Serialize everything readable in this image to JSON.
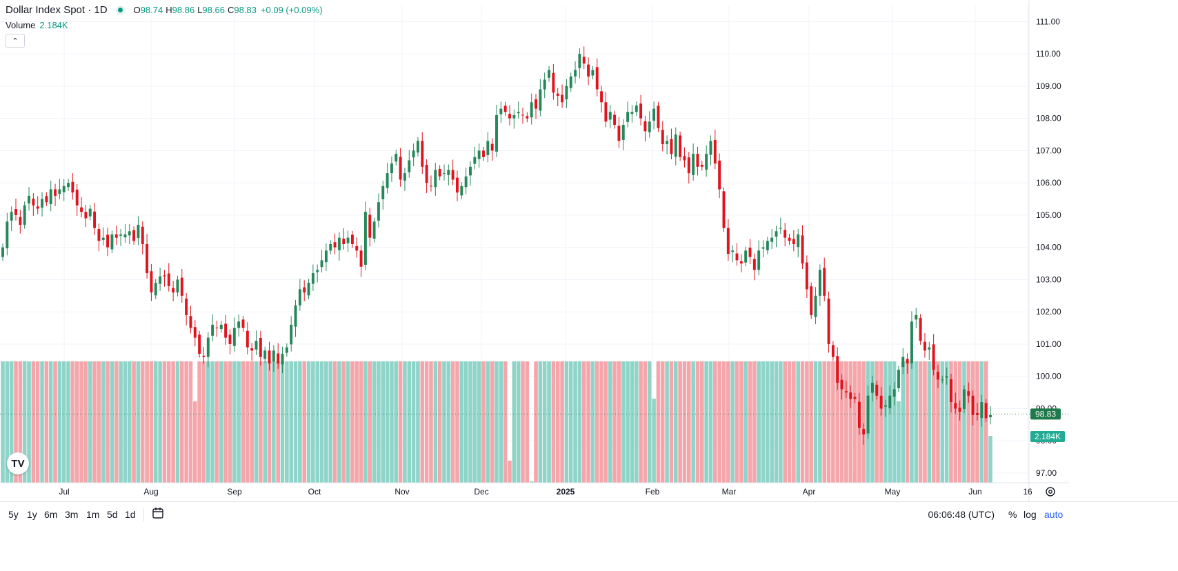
{
  "header": {
    "symbol": "Dollar Index Spot · 1D",
    "open_label": "O",
    "open": "98.74",
    "high_label": "H",
    "high": "98.86",
    "low_label": "L",
    "low": "98.66",
    "close_label": "C",
    "close": "98.83",
    "change": "+0.09 (+0.09%)"
  },
  "volume_legend": {
    "label": "Volume",
    "value": "2.184K"
  },
  "collapse_icon": "chevron-up-icon",
  "logo_icon": "tradingview-logo",
  "toolbar": {
    "ranges": [
      "5y",
      "1y",
      "6m",
      "3m",
      "1m",
      "5d",
      "1d"
    ],
    "time": "06:06:48 (UTC)",
    "percent": "%",
    "log": "log",
    "auto": "auto"
  },
  "colors": {
    "up": "#26875a",
    "down": "#e0141e",
    "vol_up": "#8fd4c8",
    "vol_down": "#f4a6ab",
    "grid": "#f0f3fa",
    "accent": "#2962ff"
  },
  "chart_data": {
    "type": "candlestick",
    "title": "Dollar Index Spot · 1D",
    "y_ticks": [
      "111.00",
      "110.00",
      "109.00",
      "108.00",
      "107.00",
      "106.00",
      "105.00",
      "104.00",
      "103.00",
      "102.00",
      "101.00",
      "100.00",
      "99.00",
      "98.00",
      "97.00"
    ],
    "ylim": [
      96.7,
      111.5
    ],
    "x_ticks": [
      "Jul",
      "Aug",
      "Sep",
      "Oct",
      "Nov",
      "Dec",
      "2025",
      "Feb",
      "Mar",
      "Apr",
      "May",
      "Jun",
      "16"
    ],
    "last_price": "98.83",
    "last_volume": "2.184K",
    "grid": true,
    "series": [
      {
        "name": "Price",
        "close": [
          104.0,
          104.8,
          105.1,
          105.0,
          104.7,
          105.3,
          105.6,
          105.3,
          105.2,
          105.5,
          105.4,
          105.8,
          105.6,
          105.8,
          105.9,
          106.0,
          105.7,
          105.3,
          105.1,
          104.9,
          105.2,
          104.6,
          104.2,
          104.3,
          104.0,
          104.4,
          104.3,
          104.4,
          104.4,
          104.5,
          104.2,
          104.7,
          104.1,
          103.2,
          102.6,
          102.9,
          103.1,
          103.1,
          102.8,
          102.6,
          103.0,
          102.5,
          101.9,
          101.5,
          101.2,
          100.7,
          100.6,
          101.2,
          101.6,
          101.5,
          101.6,
          101.2,
          101.0,
          101.5,
          101.7,
          101.5,
          100.9,
          100.8,
          101.1,
          100.6,
          100.8,
          100.4,
          100.8,
          100.4,
          100.7,
          100.9,
          101.6,
          102.2,
          102.7,
          102.6,
          102.9,
          103.2,
          103.3,
          103.6,
          103.9,
          104.1,
          104.0,
          104.3,
          104.1,
          104.3,
          104.1,
          103.9,
          103.4,
          105.1,
          104.3,
          104.8,
          105.4,
          105.9,
          106.3,
          106.6,
          106.9,
          106.1,
          106.3,
          106.7,
          107.0,
          107.3,
          106.5,
          106.0,
          105.9,
          106.4,
          106.2,
          106.3,
          106.4,
          106.1,
          105.7,
          105.9,
          106.2,
          106.5,
          106.8,
          107.0,
          106.8,
          107.3,
          107.0,
          108.1,
          108.3,
          108.2,
          108.0,
          108.1,
          108.2,
          108.1,
          108.0,
          108.5,
          108.3,
          108.9,
          109.2,
          109.5,
          108.8,
          108.7,
          108.5,
          109.0,
          109.3,
          109.5,
          110.0,
          109.7,
          109.3,
          109.5,
          108.9,
          108.5,
          107.9,
          108.2,
          107.8,
          107.3,
          107.8,
          108.2,
          108.2,
          108.4,
          108.0,
          107.6,
          107.9,
          108.3,
          107.7,
          107.2,
          107.3,
          106.9,
          107.5,
          106.8,
          106.7,
          106.3,
          106.9,
          106.5,
          106.5,
          106.9,
          107.3,
          106.6,
          105.8,
          104.6,
          103.8,
          103.9,
          103.6,
          103.5,
          103.9,
          103.7,
          103.3,
          103.9,
          104.0,
          104.2,
          104.3,
          104.5,
          104.6,
          104.3,
          104.2,
          104.1,
          104.4,
          103.5,
          102.7,
          101.9,
          102.5,
          103.3,
          102.5,
          101.0,
          100.6,
          99.8,
          99.6,
          99.5,
          99.3,
          99.3,
          98.4,
          98.2,
          99.4,
          99.8,
          99.4,
          99.0,
          99.1,
          99.4,
          99.6,
          100.2,
          100.6,
          100.4,
          101.7,
          101.9,
          101.1,
          100.8,
          100.9,
          100.2,
          99.9,
          99.9,
          100.0,
          99.2,
          99.0,
          98.9,
          99.6,
          99.4,
          98.8,
          98.8,
          99.2,
          98.7,
          98.8
        ]
      },
      {
        "name": "Volume",
        "last": "2.184K"
      }
    ]
  }
}
